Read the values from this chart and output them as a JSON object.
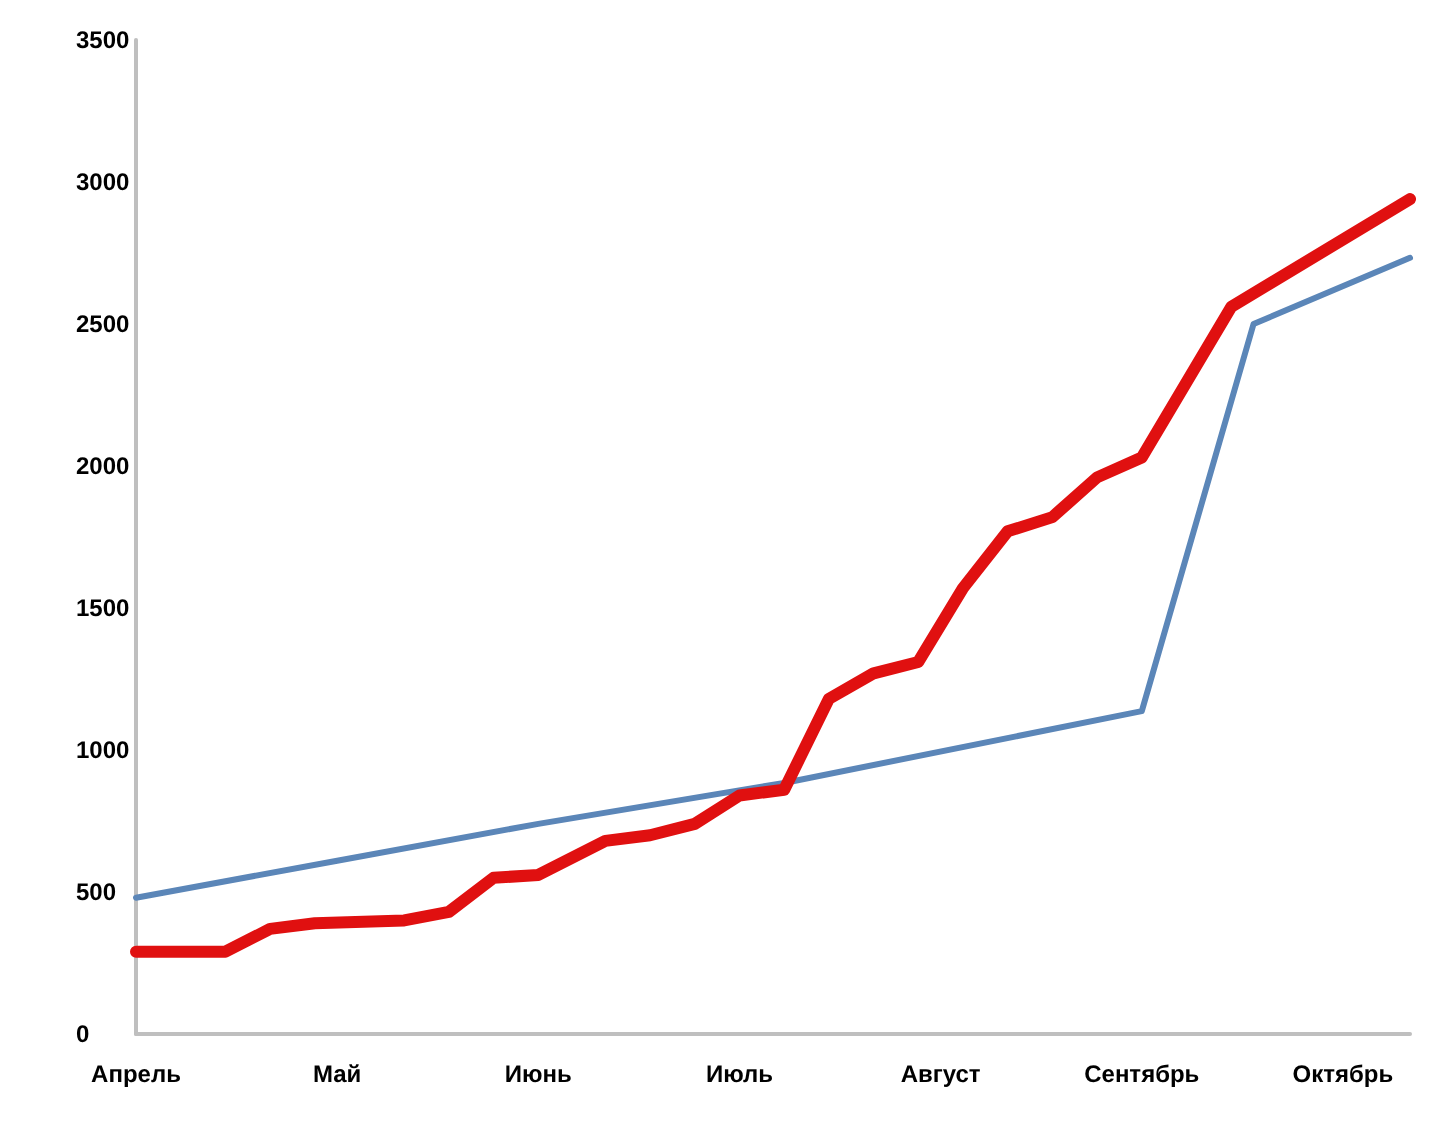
{
  "chart_data": {
    "type": "line",
    "categories": [
      "Апрель",
      null,
      null,
      null,
      null,
      null,
      null,
      null,
      null,
      "Май",
      null,
      null,
      null,
      null,
      null,
      null,
      null,
      null,
      "Июнь",
      null,
      null,
      null,
      null,
      null,
      null,
      null,
      null,
      "Июль",
      null,
      null,
      null,
      null,
      null,
      null,
      null,
      null,
      "Август",
      null,
      null,
      null,
      null,
      null,
      null,
      null,
      null,
      "Сентябрь",
      null,
      null,
      null,
      null,
      null,
      null,
      null,
      null,
      "Октябрь",
      null,
      null,
      null
    ],
    "ylim": [
      0,
      3500
    ],
    "yticks": [
      0,
      500,
      1000,
      1500,
      2000,
      2500,
      3000,
      3500
    ],
    "grid": false,
    "marker": "none",
    "line_style": "solid",
    "series": [
      {
        "color": "#5b86b8",
        "values": [
          480,
          null,
          null,
          null,
          null,
          null,
          null,
          null,
          null,
          610,
          null,
          null,
          null,
          null,
          null,
          null,
          null,
          null,
          740,
          null,
          null,
          null,
          null,
          null,
          null,
          null,
          null,
          null,
          null,
          884,
          null,
          null,
          null,
          null,
          null,
          null,
          null,
          null,
          null,
          null,
          null,
          null,
          null,
          null,
          null,
          1137,
          null,
          null,
          null,
          null,
          2500,
          null,
          null,
          null,
          null,
          null,
          null,
          2733
        ]
      },
      {
        "color": "#e01010",
        "values": [
          290,
          null,
          null,
          null,
          290,
          null,
          370,
          null,
          390,
          null,
          null,
          null,
          400,
          null,
          430,
          null,
          550,
          null,
          560,
          null,
          null,
          680,
          null,
          700,
          null,
          740,
          null,
          840,
          null,
          860,
          null,
          1180,
          null,
          1270,
          null,
          1310,
          null,
          1570,
          null,
          1770,
          null,
          1820,
          null,
          1960,
          null,
          2030,
          null,
          null,
          null,
          2560,
          null,
          null,
          null,
          null,
          null,
          null,
          null,
          2940
        ]
      }
    ]
  }
}
